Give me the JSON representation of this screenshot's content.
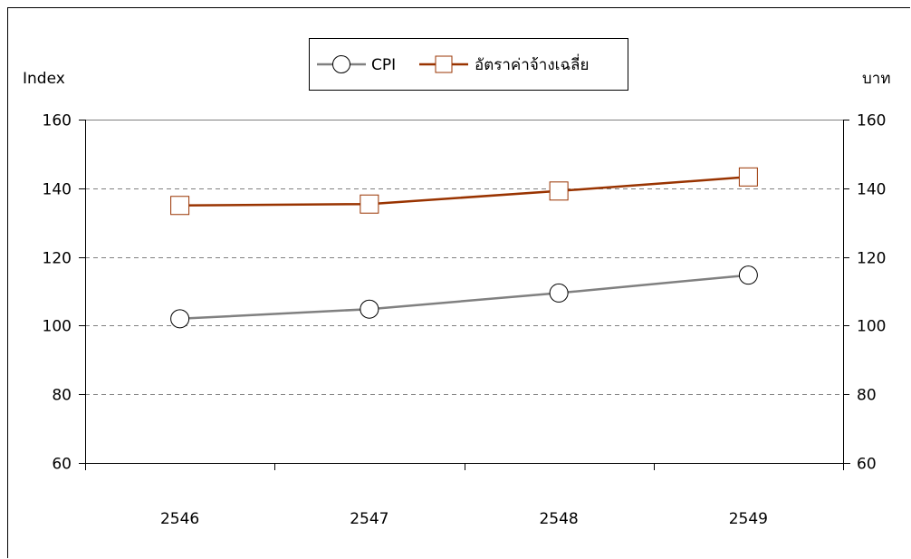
{
  "chart_data": {
    "type": "line",
    "categories": [
      "2546",
      "2547",
      "2548",
      "2549"
    ],
    "series": [
      {
        "name": "CPI",
        "values": [
          102.0,
          104.8,
          109.5,
          114.7
        ],
        "color": "#808080",
        "marker": "circle",
        "axis": "left"
      },
      {
        "name": "อัตราค่าจ้างเฉลี่ย",
        "values": [
          135.0,
          135.4,
          139.2,
          143.3
        ],
        "color": "#993300",
        "marker": "square",
        "axis": "right"
      }
    ],
    "ylabel_left": "Index",
    "ylabel_right": "บาท",
    "ylim": [
      60,
      160
    ],
    "yticks": [
      60,
      80,
      100,
      120,
      140,
      160
    ],
    "yticks_labels": [
      "60",
      "80",
      "100",
      "120",
      "140",
      "160"
    ],
    "grid": "horizontal dashed",
    "legend_position": "top"
  }
}
